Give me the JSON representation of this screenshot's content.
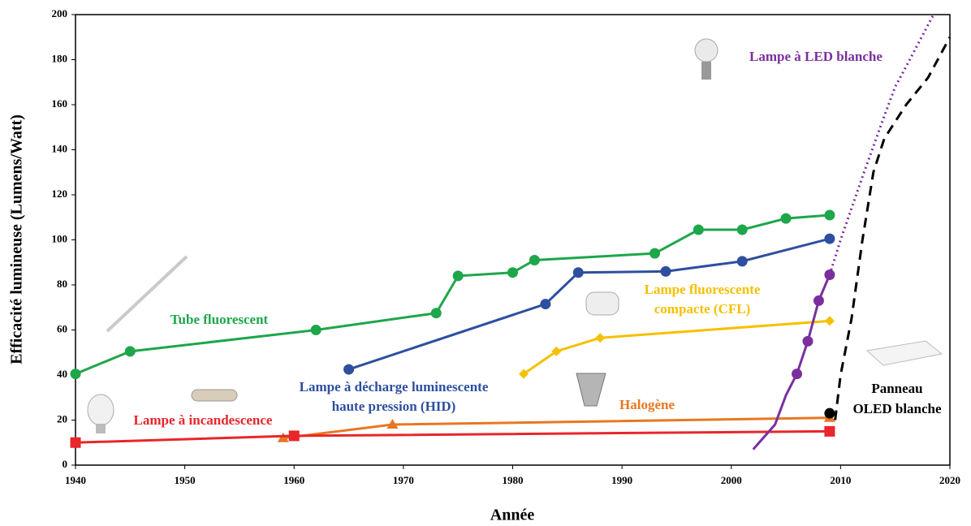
{
  "chart_data": {
    "type": "line",
    "x_label": "Année",
    "y_label": "Efficacité lumineuse  (Lumens/Watt)",
    "xlim": [
      1940,
      2020
    ],
    "xticks": [
      1940,
      1950,
      1960,
      1970,
      1980,
      1990,
      2000,
      2010,
      2020
    ],
    "ylim": [
      0,
      200
    ],
    "yticks": [
      0,
      20,
      40,
      60,
      80,
      100,
      120,
      140,
      160,
      180,
      200
    ],
    "series": [
      {
        "color": "#1ea64a",
        "marker": "circle",
        "style": "solid",
        "x": [
          1940,
          1945,
          1962,
          1973,
          1975,
          1980,
          1982,
          1993,
          1997,
          2001,
          2005,
          2009
        ],
        "values": [
          40.5,
          50.5,
          60,
          67.5,
          84,
          85.5,
          91,
          94,
          104.5,
          104.5,
          109.5,
          111
        ]
      },
      {
        "color": "#2e4fa0",
        "marker": "circle",
        "style": "solid",
        "x": [
          1965,
          1983,
          1986,
          1994,
          2001,
          2009
        ],
        "values": [
          42.5,
          71.5,
          85.5,
          86,
          90.5,
          100.5
        ]
      },
      {
        "color": "#f5c000",
        "marker": "diamond",
        "style": "solid",
        "x": [
          1981,
          1984,
          1988,
          2009
        ],
        "values": [
          40.5,
          50.5,
          56.5,
          64
        ]
      },
      {
        "color": "#e87722",
        "marker": "triangle",
        "style": "solid",
        "x": [
          1959,
          1969,
          2009
        ],
        "values": [
          12,
          18,
          21
        ]
      },
      {
        "color": "#e8262b",
        "marker": "square",
        "style": "solid",
        "x": [
          1940,
          1960,
          2009
        ],
        "values": [
          10,
          13,
          15
        ]
      },
      {
        "color": "#7b2f9e",
        "marker": "none",
        "style": "solid",
        "x": [
          2002,
          2004,
          2005,
          2006
        ],
        "values": [
          7,
          18,
          31,
          40.5
        ]
      },
      {
        "color": "#7b2f9e",
        "marker": "circle",
        "style": "solid",
        "x": [
          2006,
          2007,
          2008,
          2009
        ],
        "values": [
          40.5,
          55,
          73,
          84.5
        ]
      },
      {
        "color": "#7b2f9e",
        "marker": "none",
        "style": "dotted",
        "x": [
          2009,
          2010,
          2012,
          2014,
          2015,
          2016,
          2018.5
        ],
        "values": [
          84.5,
          100,
          128,
          155,
          168,
          177,
          200
        ]
      },
      {
        "color": "#000000",
        "marker": "circle",
        "style": "solid",
        "x": [
          2009
        ],
        "values": [
          23
        ]
      },
      {
        "color": "#000000",
        "marker": "none",
        "style": "dashed",
        "x": [
          2009.5,
          2010,
          2011,
          2012,
          2013,
          2014,
          2016,
          2018,
          2020
        ],
        "values": [
          20,
          40,
          65,
          100,
          130,
          145,
          160,
          172,
          190
        ]
      }
    ],
    "annotations": [
      {
        "text": "Tube fluorescent",
        "color": "#1ea64a"
      },
      {
        "text": "Lampe à décharge luminescente",
        "color": "#2e4fa0"
      },
      {
        "text": "haute pression (HID)",
        "color": "#2e4fa0"
      },
      {
        "text": "Lampe fluorescente",
        "color": "#f5c000"
      },
      {
        "text": "compacte (CFL)",
        "color": "#f5c000"
      },
      {
        "text": "Halogène",
        "color": "#e87722"
      },
      {
        "text": "Lampe à incandescence",
        "color": "#e8262b"
      },
      {
        "text": "Lampe à LED blanche",
        "color": "#7b2f9e"
      },
      {
        "text": "Panneau",
        "color": "#000000"
      },
      {
        "text": "OLED blanche",
        "color": "#000000"
      }
    ]
  }
}
